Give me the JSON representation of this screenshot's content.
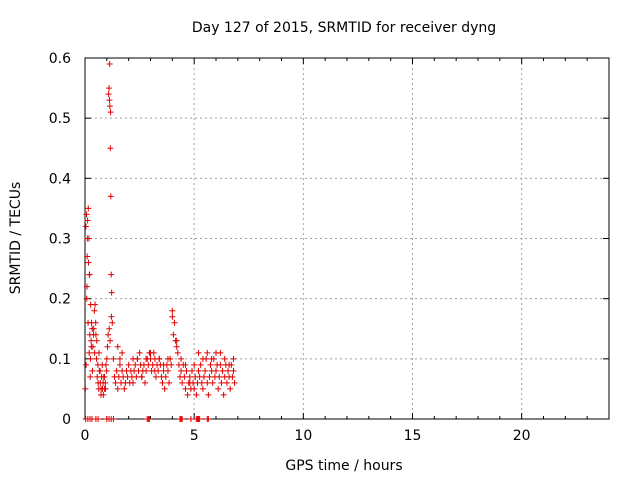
{
  "chart_data": {
    "type": "scatter",
    "title": "Day 127 of 2015, SRMTID for receiver dyng",
    "xlabel": "GPS time / hours",
    "ylabel": "SRMTID / TECUs",
    "xlim": [
      0,
      24
    ],
    "ylim": [
      0,
      0.6
    ],
    "xticks": [
      0,
      5,
      10,
      15,
      20
    ],
    "yticks": [
      0,
      0.1,
      0.2,
      0.3,
      0.4,
      0.5,
      0.6
    ],
    "xtick_labels": [
      "0",
      "5",
      "10",
      "15",
      "20"
    ],
    "ytick_labels": [
      "0",
      "0.1",
      "0.2",
      "0.3",
      "0.4",
      "0.5",
      "0.6"
    ],
    "grid": true,
    "marker": "+",
    "series": [
      {
        "name": "SRMTID",
        "color": "#e00000",
        "x": [
          0.02,
          0.05,
          0.08,
          0.1,
          0.12,
          0.15,
          0.18,
          0.2,
          0.22,
          0.25,
          0.28,
          0.3,
          0.33,
          0.36,
          0.4,
          0.43,
          0.46,
          0.5,
          0.53,
          0.56,
          0.6,
          0.63,
          0.66,
          0.7,
          0.73,
          0.76,
          0.8,
          0.83,
          0.86,
          0.9,
          0.93,
          0.96,
          1.0,
          1.03,
          1.06,
          1.08,
          1.1,
          1.12,
          1.14,
          1.16,
          1.18,
          1.2,
          1.22,
          1.25,
          1.3,
          1.35,
          1.4,
          1.45,
          1.5,
          1.55,
          1.6,
          1.65,
          1.7,
          1.75,
          1.8,
          1.85,
          1.9,
          1.95,
          2.0,
          2.05,
          2.1,
          2.15,
          2.2,
          2.25,
          2.3,
          2.35,
          2.4,
          2.45,
          2.5,
          2.55,
          2.6,
          2.65,
          2.7,
          2.75,
          2.8,
          2.85,
          2.9,
          2.95,
          3.0,
          3.05,
          3.1,
          3.15,
          3.2,
          3.25,
          3.3,
          3.35,
          3.4,
          3.45,
          3.5,
          3.55,
          3.6,
          3.65,
          3.7,
          3.75,
          3.8,
          3.85,
          3.9,
          3.95,
          4.0,
          4.05,
          4.1,
          4.15,
          4.2,
          4.25,
          4.3,
          4.35,
          4.4,
          4.45,
          4.5,
          4.55,
          4.6,
          4.65,
          4.7,
          4.75,
          4.8,
          4.85,
          4.9,
          4.95,
          5.0,
          5.05,
          5.1,
          5.15,
          5.2,
          5.25,
          5.3,
          5.35,
          5.4,
          5.45,
          5.5,
          5.55,
          5.6,
          5.65,
          5.7,
          5.75,
          5.8,
          5.85,
          5.9,
          5.95,
          6.0,
          6.05,
          6.1,
          6.15,
          6.2,
          6.25,
          6.3,
          6.35,
          6.4,
          6.45,
          6.5,
          6.55,
          6.6,
          6.65,
          6.7,
          6.75,
          6.8,
          6.85,
          0.04,
          0.09,
          0.14,
          0.19,
          0.24,
          0.29,
          0.34,
          0.39,
          0.44,
          0.49,
          0.54,
          0.59,
          0.64,
          0.69,
          0.74,
          0.79,
          0.84,
          0.89,
          0.94,
          0.99,
          1.13,
          1.17,
          1.21,
          1.11,
          1.15,
          0.07,
          0.11,
          0.16,
          0.21,
          0.26,
          1.5,
          1.6,
          1.7,
          2.2,
          2.4,
          2.6,
          2.8,
          3.0,
          3.2,
          3.4,
          3.6,
          3.8,
          4.0,
          4.2,
          4.4,
          4.6,
          4.8,
          5.0,
          5.2,
          5.4,
          5.6,
          5.8,
          6.0,
          6.2,
          6.4,
          6.6,
          6.8,
          0.03,
          0.13,
          0.23,
          0.32,
          0.5,
          0.6,
          1.0,
          1.1,
          1.2,
          1.3,
          2.85,
          2.9,
          2.95,
          4.35,
          4.4,
          4.45,
          4.85,
          5.1,
          5.15,
          5.2,
          5.25,
          5.6,
          5.65
        ],
        "y": [
          0.05,
          0.09,
          0.2,
          0.27,
          0.33,
          0.35,
          0.3,
          0.24,
          0.14,
          0.1,
          0.13,
          0.16,
          0.15,
          0.12,
          0.15,
          0.18,
          0.19,
          0.14,
          0.1,
          0.07,
          0.06,
          0.05,
          0.08,
          0.06,
          0.04,
          0.07,
          0.05,
          0.06,
          0.07,
          0.05,
          0.06,
          0.09,
          0.1,
          0.12,
          0.14,
          0.54,
          0.55,
          0.53,
          0.52,
          0.45,
          0.37,
          0.24,
          0.21,
          0.16,
          0.1,
          0.07,
          0.06,
          0.08,
          0.05,
          0.07,
          0.09,
          0.06,
          0.08,
          0.07,
          0.05,
          0.06,
          0.08,
          0.07,
          0.09,
          0.06,
          0.08,
          0.07,
          0.1,
          0.08,
          0.09,
          0.07,
          0.1,
          0.08,
          0.11,
          0.09,
          0.07,
          0.08,
          0.09,
          0.06,
          0.08,
          0.1,
          0.09,
          0.11,
          0.1,
          0.08,
          0.09,
          0.11,
          0.1,
          0.07,
          0.09,
          0.08,
          0.1,
          0.09,
          0.07,
          0.06,
          0.08,
          0.05,
          0.07,
          0.09,
          0.08,
          0.06,
          0.1,
          0.09,
          0.17,
          0.14,
          0.16,
          0.13,
          0.12,
          0.11,
          0.09,
          0.07,
          0.08,
          0.06,
          0.09,
          0.07,
          0.05,
          0.08,
          0.04,
          0.06,
          0.07,
          0.05,
          0.08,
          0.06,
          0.05,
          0.07,
          0.04,
          0.06,
          0.08,
          0.07,
          0.09,
          0.06,
          0.05,
          0.07,
          0.08,
          0.1,
          0.06,
          0.04,
          0.07,
          0.09,
          0.08,
          0.06,
          0.1,
          0.07,
          0.08,
          0.09,
          0.05,
          0.07,
          0.09,
          0.06,
          0.08,
          0.04,
          0.07,
          0.09,
          0.06,
          0.08,
          0.07,
          0.05,
          0.09,
          0.07,
          0.08,
          0.06,
          0.32,
          0.22,
          0.16,
          0.11,
          0.07,
          0.12,
          0.08,
          0.14,
          0.11,
          0.16,
          0.13,
          0.09,
          0.11,
          0.08,
          0.05,
          0.09,
          0.04,
          0.07,
          0.05,
          0.08,
          0.59,
          0.51,
          0.17,
          0.15,
          0.13,
          0.34,
          0.3,
          0.26,
          0.24,
          0.19,
          0.12,
          0.1,
          0.11,
          0.06,
          0.1,
          0.07,
          0.1,
          0.11,
          0.08,
          0.1,
          0.09,
          0.1,
          0.18,
          0.13,
          0.1,
          0.09,
          0.06,
          0.09,
          0.11,
          0.1,
          0.11,
          0.1,
          0.11,
          0.11,
          0.1,
          0.09,
          0.1,
          0.0,
          0.0,
          0.0,
          0.0,
          0.0,
          0.0,
          0.0,
          0.0,
          0.0,
          0.0,
          0.0,
          0.0,
          0.0,
          0.0,
          0.0,
          0.0,
          0.0,
          0.0,
          0.0,
          0.0,
          0.0,
          0.0,
          0.0
        ]
      }
    ]
  }
}
